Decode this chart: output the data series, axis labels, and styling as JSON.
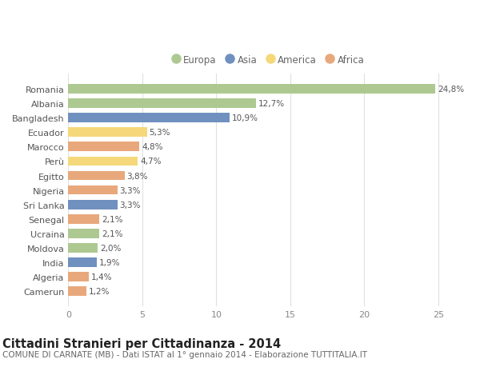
{
  "countries": [
    "Romania",
    "Albania",
    "Bangladesh",
    "Ecuador",
    "Marocco",
    "Perù",
    "Egitto",
    "Nigeria",
    "Sri Lanka",
    "Senegal",
    "Ucraina",
    "Moldova",
    "India",
    "Algeria",
    "Camerun"
  ],
  "values": [
    24.8,
    12.7,
    10.9,
    5.3,
    4.8,
    4.7,
    3.8,
    3.3,
    3.3,
    2.1,
    2.1,
    2.0,
    1.9,
    1.4,
    1.2
  ],
  "labels": [
    "24,8%",
    "12,7%",
    "10,9%",
    "5,3%",
    "4,8%",
    "4,7%",
    "3,8%",
    "3,3%",
    "3,3%",
    "2,1%",
    "2,1%",
    "2,0%",
    "1,9%",
    "1,4%",
    "1,2%"
  ],
  "continents": [
    "Europa",
    "Europa",
    "Asia",
    "America",
    "Africa",
    "America",
    "Africa",
    "Africa",
    "Asia",
    "Africa",
    "Europa",
    "Europa",
    "Asia",
    "Africa",
    "Africa"
  ],
  "continent_colors": {
    "Europa": "#adc991",
    "Asia": "#7090bf",
    "America": "#f5d87a",
    "Africa": "#e8a87c"
  },
  "legend_order": [
    "Europa",
    "Asia",
    "America",
    "Africa"
  ],
  "title": "Cittadini Stranieri per Cittadinanza - 2014",
  "subtitle": "COMUNE DI CARNATE (MB) - Dati ISTAT al 1° gennaio 2014 - Elaborazione TUTTITALIA.IT",
  "xlim": [
    0,
    27
  ],
  "xticks": [
    0,
    5,
    10,
    15,
    20,
    25
  ],
  "background_color": "#ffffff",
  "grid_color": "#e0e0e0",
  "bar_height": 0.65,
  "title_fontsize": 10.5,
  "subtitle_fontsize": 7.5,
  "tick_fontsize": 8,
  "label_fontsize": 7.5,
  "legend_fontsize": 8.5
}
